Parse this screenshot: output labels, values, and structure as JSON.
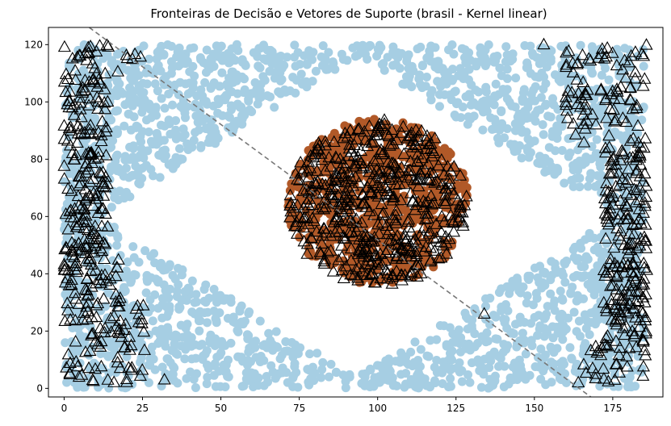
{
  "chart_data": {
    "type": "scatter",
    "title": "Fronteiras de Decisão e Vetores de Suporte (brasil - Kernel linear)",
    "xlabel": "",
    "ylabel": "",
    "xlim": [
      -5,
      191
    ],
    "ylim": [
      -3,
      126
    ],
    "xticks": [
      0,
      25,
      50,
      75,
      100,
      125,
      150,
      175
    ],
    "yticks": [
      0,
      20,
      40,
      60,
      80,
      100,
      120
    ],
    "grid": false,
    "colors": {
      "class_light": "#a6cee3",
      "class_dark": "#b15928",
      "support_vector_edge": "#000000",
      "boundary": "#777777"
    },
    "decision_boundary": {
      "style": "dashed",
      "points": [
        [
          8,
          126
        ],
        [
          168,
          -3
        ]
      ]
    },
    "series": [
      {
        "marker": "circle",
        "color": "#a6cee3",
        "description_points": "light blue points filling the rectangle outside the central diamond, plus edges"
      },
      {
        "marker": "circle",
        "color": "#b15928",
        "description_points": "brown points filling the central circle centered near (100, 65) radius ~29"
      },
      {
        "marker": "triangle-open",
        "color": "#000000",
        "description_points": "support vectors: left band x 0-25, right band x 160-186, and within central circle"
      }
    ],
    "sample_points": {
      "light_region": {
        "x": [
          0,
          185
        ],
        "y": [
          0,
          120
        ]
      },
      "diamond_vertices": [
        [
          11,
          60
        ],
        [
          92,
          116
        ],
        [
          176,
          60
        ],
        [
          92,
          4
        ]
      ],
      "circle_center": [
        100,
        65
      ],
      "circle_radius_x": 29,
      "circle_radius_y": 29,
      "left_sv_band": {
        "x": [
          0,
          26
        ],
        "y": [
          2,
          120
        ]
      },
      "right_sv_band": {
        "x": [
          160,
          186
        ],
        "y": [
          2,
          120
        ]
      },
      "extra_sv": [
        [
          32,
          3
        ],
        [
          134,
          26
        ],
        [
          164,
          2
        ],
        [
          153,
          120
        ]
      ]
    }
  }
}
